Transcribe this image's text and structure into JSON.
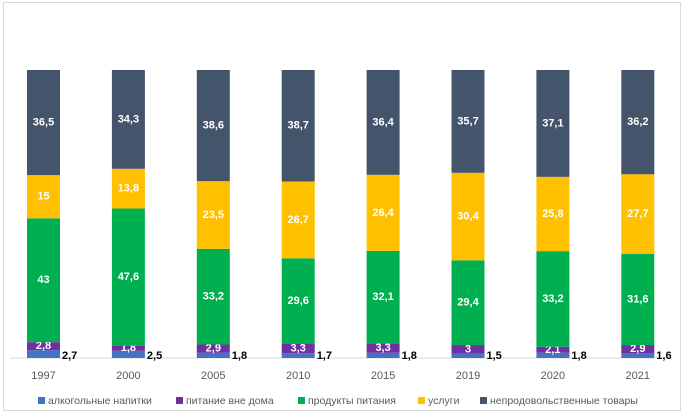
{
  "chart_data": {
    "type": "bar",
    "stacked": true,
    "categories": [
      "1997",
      "2000",
      "2005",
      "2010",
      "2015",
      "2019",
      "2020",
      "2021"
    ],
    "series": [
      {
        "name": "алкогольные напитки",
        "color": "#4472C4",
        "values": [
          2.7,
          2.5,
          1.8,
          1.7,
          1.8,
          1.5,
          1.8,
          1.6
        ]
      },
      {
        "name": "питание вне дома",
        "color": "#7030A0",
        "values": [
          2.8,
          1.8,
          2.9,
          3.3,
          3.3,
          3,
          2.1,
          2.9
        ]
      },
      {
        "name": "продукты питания",
        "color": "#00B050",
        "values": [
          43,
          47.6,
          33.2,
          29.6,
          32.1,
          29.4,
          33.2,
          31.6
        ]
      },
      {
        "name": "услуги",
        "color": "#FFC000",
        "values": [
          15,
          13.8,
          23.5,
          26.7,
          26.4,
          30.4,
          25.8,
          27.7
        ]
      },
      {
        "name": "непродовольственные товары",
        "color": "#44546A",
        "values": [
          36.5,
          34.3,
          38.6,
          38.7,
          36.4,
          35.7,
          37.1,
          36.2
        ]
      }
    ],
    "ylim": [
      0,
      100
    ],
    "grid": false,
    "legend": "bottom",
    "title": "",
    "xlabel": "",
    "ylabel": ""
  }
}
